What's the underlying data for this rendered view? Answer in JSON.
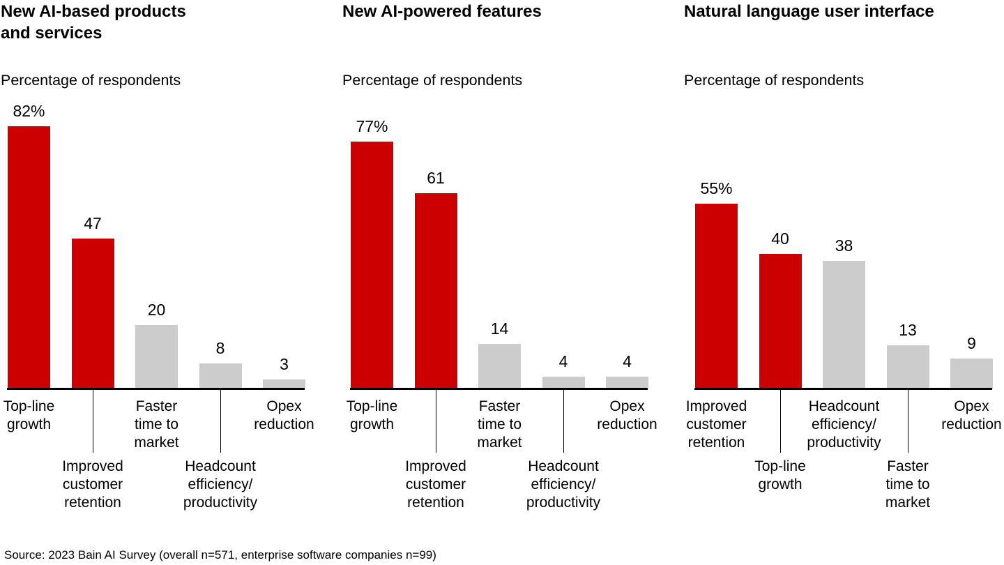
{
  "colors": {
    "highlight": "#cc0000",
    "muted": "#cccccc",
    "axis": "#000000",
    "text": "#000000",
    "background": "#ffffff"
  },
  "footer": {
    "source": "Source: 2023 Bain AI Survey (overall n=571, enterprise software companies n=99)"
  },
  "chart_data": [
    {
      "type": "bar",
      "title": "New AI-based products\nand services",
      "subtitle": "Percentage of respondents",
      "categories": [
        "Top-line\ngrowth",
        "Improved\ncustomer\nretention",
        "Faster\ntime to\nmarket",
        "Headcount\nefficiency/\nproductivity",
        "Opex\nreduction"
      ],
      "values": [
        82,
        47,
        20,
        8,
        3
      ],
      "value_labels": [
        "82%",
        "47",
        "20",
        "8",
        "3"
      ],
      "bar_colors": [
        "highlight",
        "highlight",
        "muted",
        "muted",
        "muted"
      ],
      "xlabel": "",
      "ylabel": "Percentage of respondents",
      "ylim": [
        0,
        90
      ],
      "grid": false,
      "legend": "none"
    },
    {
      "type": "bar",
      "title": "New AI-powered features",
      "subtitle": "Percentage of respondents",
      "categories": [
        "Top-line\ngrowth",
        "Improved\ncustomer\nretention",
        "Faster\ntime to\nmarket",
        "Headcount\nefficiency/\nproductivity",
        "Opex\nreduction"
      ],
      "values": [
        77,
        61,
        14,
        4,
        4
      ],
      "value_labels": [
        "77%",
        "61",
        "14",
        "4",
        "4"
      ],
      "bar_colors": [
        "highlight",
        "highlight",
        "muted",
        "muted",
        "muted"
      ],
      "xlabel": "",
      "ylabel": "Percentage of respondents",
      "ylim": [
        0,
        90
      ],
      "grid": false,
      "legend": "none"
    },
    {
      "type": "bar",
      "title": "Natural language user interface",
      "subtitle": "Percentage of respondents",
      "categories": [
        "Improved\ncustomer\nretention",
        "Top-line\ngrowth",
        "Headcount\nefficiency/\nproductivity",
        "Faster\ntime to\nmarket",
        "Opex\nreduction"
      ],
      "values": [
        55,
        40,
        38,
        13,
        9
      ],
      "value_labels": [
        "55%",
        "40",
        "38",
        "13",
        "9"
      ],
      "bar_colors": [
        "highlight",
        "highlight",
        "muted",
        "muted",
        "muted"
      ],
      "xlabel": "",
      "ylabel": "Percentage of respondents",
      "ylim": [
        0,
        90
      ],
      "grid": false,
      "legend": "none"
    }
  ]
}
